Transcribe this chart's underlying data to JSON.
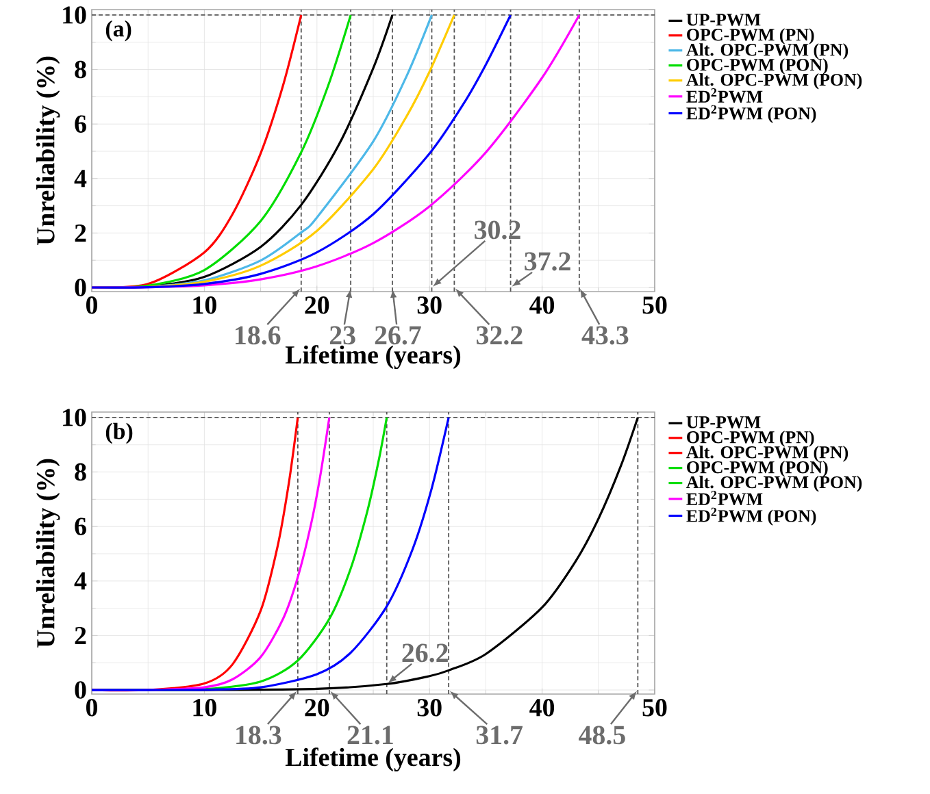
{
  "chart_data": [
    {
      "type": "line",
      "title": "(a)",
      "xlabel": "Lifetime (years)",
      "ylabel": "Unreliability (%)",
      "xlim": [
        0,
        50
      ],
      "ylim": [
        -0.15,
        10.2
      ],
      "xticks": [
        0,
        10,
        20,
        30,
        40,
        50
      ],
      "yticks": [
        0,
        2,
        4,
        6,
        8,
        10
      ],
      "grid": true,
      "legend": "right",
      "series": [
        {
          "name": "UP-PWM",
          "color": "#000000",
          "x": [
            0,
            5,
            10,
            15,
            18.6,
            22,
            25,
            26.7
          ],
          "values": [
            0,
            0.04,
            0.39,
            1.49,
            3.03,
            5.28,
            8.05,
            10
          ]
        },
        {
          "name": "OPC-PWM (PN)",
          "color": "#ff0000",
          "x": [
            0,
            5,
            10,
            12.5,
            15,
            17,
            18.6
          ],
          "values": [
            0,
            0.13,
            1.29,
            2.69,
            4.92,
            7.43,
            10
          ]
        },
        {
          "name": "Alt. OPC-PWM (PN)",
          "color": "#4db8e8",
          "x": [
            0,
            5,
            10,
            15,
            18.6,
            20,
            25,
            28,
            30.2
          ],
          "values": [
            0,
            0.03,
            0.26,
            0.99,
            2.02,
            2.57,
            5.36,
            7.79,
            10
          ]
        },
        {
          "name": "OPC-PWM (PON)",
          "color": "#00dd00",
          "x": [
            0,
            5,
            10,
            15,
            18.6,
            21,
            23
          ],
          "values": [
            0,
            0.07,
            0.64,
            2.44,
            4.96,
            7.41,
            10
          ]
        },
        {
          "name": "Alt. OPC-PWM (PON)",
          "color": "#ffcc00",
          "x": [
            0,
            5,
            10,
            15,
            20,
            25,
            28,
            30,
            32.2
          ],
          "values": [
            0,
            0.02,
            0.21,
            0.8,
            2.08,
            4.34,
            6.31,
            7.92,
            10
          ]
        },
        {
          "name": "ED$^{2}$PWM",
          "color": "#ff00ff",
          "x": [
            0,
            5,
            10,
            15,
            20,
            25,
            30,
            35,
            40,
            43.3
          ],
          "values": [
            0,
            0.01,
            0.08,
            0.3,
            0.78,
            1.63,
            2.98,
            4.96,
            7.7,
            10
          ]
        },
        {
          "name": "ED$^{2}$PWM (PON)",
          "color": "#0000ff",
          "x": [
            0,
            5,
            10,
            15,
            20,
            25,
            30,
            33,
            35,
            37.2
          ],
          "values": [
            0,
            0.01,
            0.13,
            0.5,
            1.29,
            2.69,
            4.92,
            6.73,
            8.18,
            10
          ]
        }
      ],
      "ref_lines": [
        {
          "axis": "y",
          "value": 10,
          "color": "#555555",
          "line_style": "dashed"
        },
        {
          "axis": "x",
          "value": 18.6,
          "color": "#555555",
          "line_style": "dashed"
        },
        {
          "axis": "x",
          "value": 23,
          "color": "#555555",
          "line_style": "dashed"
        },
        {
          "axis": "x",
          "value": 26.7,
          "color": "#555555",
          "line_style": "dashed"
        },
        {
          "axis": "x",
          "value": 30.2,
          "color": "#555555",
          "line_style": "dashed"
        },
        {
          "axis": "x",
          "value": 32.2,
          "color": "#555555",
          "line_style": "dashed"
        },
        {
          "axis": "x",
          "value": 37.2,
          "color": "#555555",
          "line_style": "dashed"
        },
        {
          "axis": "x",
          "value": 43.3,
          "color": "#555555",
          "line_style": "dashed"
        }
      ],
      "annotations": [
        {
          "text": "18.6",
          "x": 18.6,
          "y": 0
        },
        {
          "text": "23",
          "x": 23,
          "y": 0
        },
        {
          "text": "26.7",
          "x": 26.7,
          "y": 0
        },
        {
          "text": "30.2",
          "x": 30.2,
          "y": 0
        },
        {
          "text": "32.2",
          "x": 32.2,
          "y": 0
        },
        {
          "text": "37.2",
          "x": 37.2,
          "y": 0
        },
        {
          "text": "43.3",
          "x": 43.3,
          "y": 0
        }
      ]
    },
    {
      "type": "line",
      "title": "(b)",
      "xlabel": "Lifetime (years)",
      "ylabel": "Unreliability (%)",
      "xlim": [
        0,
        50
      ],
      "ylim": [
        -0.15,
        10.2
      ],
      "xticks": [
        0,
        10,
        20,
        30,
        40,
        50
      ],
      "yticks": [
        0,
        2,
        4,
        6,
        8,
        10
      ],
      "grid": true,
      "legend": "right",
      "series": [
        {
          "name": "UP-PWM",
          "color": "#000000",
          "x": [
            0,
            10,
            20,
            26.2,
            30,
            31.7,
            35,
            40,
            43,
            45,
            47,
            48.5
          ],
          "values": [
            0,
            0,
            0.04,
            0.22,
            0.51,
            0.72,
            1.32,
            3.03,
            4.74,
            6.28,
            8.23,
            10
          ]
        },
        {
          "name": "OPC-PWM (PN)",
          "color": "#ff0000",
          "x": [
            0,
            5,
            10,
            12.5,
            15,
            16.5,
            17.5,
            18.3
          ],
          "values": [
            0,
            0,
            0.24,
            0.94,
            2.91,
            5.26,
            7.58,
            10
          ]
        },
        {
          "name": "Alt. OPC-PWM (PN)",
          "color": "#ff0000"
        },
        {
          "name": "OPC-PWM (PON)",
          "color": "#00dd00",
          "x": [
            0,
            5,
            10,
            15,
            18.3,
            21.1,
            23,
            24.5,
            25.5,
            26.2
          ],
          "values": [
            0,
            0,
            0.03,
            0.31,
            1.08,
            2.61,
            4.46,
            6.6,
            8.45,
            10
          ]
        },
        {
          "name": "Alt. OPC-PWM (PON)",
          "color": "#00dd00"
        },
        {
          "name": "ED$^{2}$PWM",
          "color": "#ff00ff",
          "x": [
            0,
            5,
            10,
            12.5,
            15,
            17,
            18.3,
            19.5,
            20.3,
            21.1
          ],
          "values": [
            0,
            0,
            0.1,
            0.39,
            1.21,
            2.62,
            4.14,
            6.13,
            7.87,
            10
          ]
        },
        {
          "name": "ED$^{2}$PWM (PON)",
          "color": "#0000ff",
          "x": [
            0,
            5,
            10,
            15,
            20,
            23,
            26.2,
            28.5,
            30.2,
            31.7
          ],
          "values": [
            0,
            0,
            0.01,
            0.1,
            0.58,
            1.37,
            3.07,
            5.17,
            7.41,
            10
          ]
        }
      ],
      "ref_lines": [
        {
          "axis": "y",
          "value": 10,
          "color": "#555555",
          "line_style": "dashed"
        },
        {
          "axis": "x",
          "value": 18.3,
          "color": "#555555",
          "line_style": "dashed"
        },
        {
          "axis": "x",
          "value": 21.1,
          "color": "#555555",
          "line_style": "dashed"
        },
        {
          "axis": "x",
          "value": 26.2,
          "color": "#555555",
          "line_style": "dashed"
        },
        {
          "axis": "x",
          "value": 31.7,
          "color": "#555555",
          "line_style": "dashed"
        },
        {
          "axis": "x",
          "value": 48.5,
          "color": "#555555",
          "line_style": "dashed"
        }
      ],
      "annotations": [
        {
          "text": "18.3",
          "x": 18.3,
          "y": 0
        },
        {
          "text": "21.1",
          "x": 21.1,
          "y": 0
        },
        {
          "text": "26.2",
          "x": 26.2,
          "y": 0.22
        },
        {
          "text": "31.7",
          "x": 31.7,
          "y": 0
        },
        {
          "text": "48.5",
          "x": 48.5,
          "y": 0
        }
      ]
    }
  ]
}
